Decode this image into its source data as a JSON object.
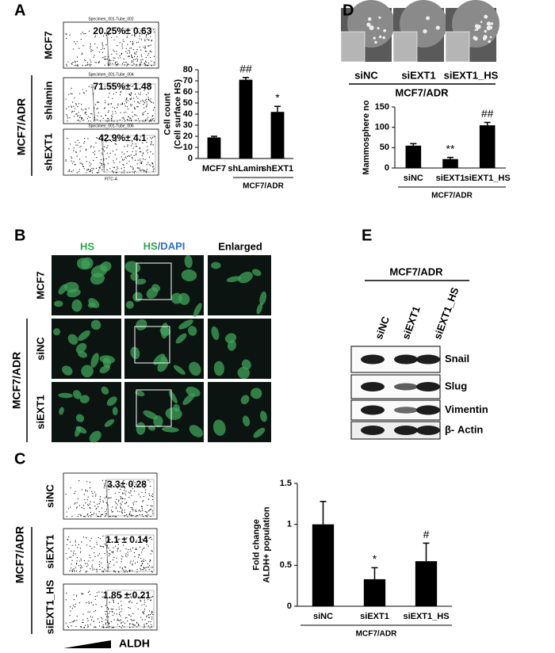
{
  "panels": {
    "A": {
      "label": "A",
      "rows": [
        "MCF7",
        "MCF7/ADR",
        "shlamin",
        "shEXT1"
      ],
      "plots": [
        {
          "title": "Specimen_001-Tube_002",
          "value": "20.25%± 0.63"
        },
        {
          "title": "Specimen_001-Tube_004",
          "value": "71.55%± 1.48"
        },
        {
          "title": "Specimen_001-Tube_006",
          "value": "42.9%± 4.1"
        }
      ],
      "x_axis": "FITC-A"
    },
    "B": {
      "label": "B",
      "columns": [
        "HS",
        [
          "HS",
          "/DAPI"
        ],
        "Enlarged"
      ],
      "rows": [
        "MCF7",
        "MCF7/ADR",
        "siNC",
        "siEXT1"
      ]
    },
    "C": {
      "label": "C",
      "rows": [
        "siNC",
        "siEXT1",
        "siEXT1_HS"
      ],
      "group": "MCF7/ADR",
      "plots": [
        {
          "value": "3.3± 0.28"
        },
        {
          "value": "1.1 ± 0.14"
        },
        {
          "value": "1.85 ± 0.21"
        }
      ],
      "x_axis": "ALDH"
    },
    "D": {
      "label": "D",
      "captions": [
        "siNC",
        "siEXT1",
        "siEXT1_HS"
      ],
      "group": "MCF7/ADR"
    },
    "E": {
      "label": "E",
      "group": "MCF7/ADR",
      "lanes": [
        "siNC",
        "siEXT1",
        "siEXT1_HS"
      ],
      "bands": [
        "Snail",
        "Slug",
        "Vimentin",
        "β- Actin"
      ]
    }
  },
  "chart_data": [
    {
      "type": "bar",
      "ylabel": [
        "Cell count",
        "(Cell surface HS)"
      ],
      "categories": [
        "MCF7",
        "shLamin",
        "shEXT1"
      ],
      "values": [
        19,
        71,
        42
      ],
      "errors": [
        1,
        2,
        5
      ],
      "annotations": [
        null,
        "##",
        "*"
      ],
      "group_label": "MCF7/ADR",
      "ylim": [
        0,
        80
      ],
      "yticks": [
        0,
        10,
        20,
        30,
        40,
        50,
        60,
        70,
        80
      ],
      "color": "#000000"
    },
    {
      "type": "bar",
      "ylabel": [
        "Mammosphere no"
      ],
      "categories": [
        "siNC",
        "siEXT1",
        "siEXT1_HS"
      ],
      "values": [
        55,
        22,
        105
      ],
      "errors": [
        5,
        4,
        7
      ],
      "annotations": [
        null,
        "**",
        "##"
      ],
      "group_label": "MCF7/ADR",
      "ylim": [
        0,
        150
      ],
      "yticks": [
        0,
        50,
        100,
        150
      ],
      "color": "#000000"
    },
    {
      "type": "bar",
      "ylabel": [
        "Fold change",
        "ALDH+ population"
      ],
      "categories": [
        "siNC",
        "siEXT1",
        "siEXT1_HS"
      ],
      "values": [
        1.0,
        0.33,
        0.55
      ],
      "errors": [
        0.28,
        0.14,
        0.22
      ],
      "annotations": [
        null,
        "*",
        "#"
      ],
      "group_label": "MCF7/ADR",
      "ylim": [
        0,
        1.5
      ],
      "yticks": [
        0,
        0.5,
        1,
        1.5
      ],
      "color": "#000000"
    }
  ]
}
